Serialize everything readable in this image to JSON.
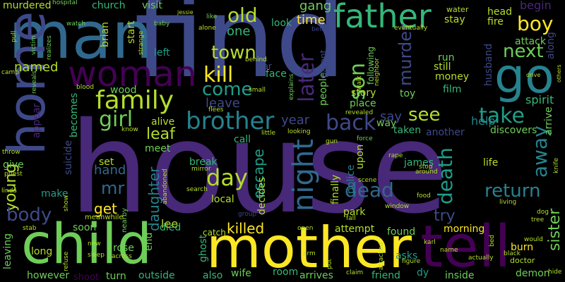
{
  "colors": {
    "background": "#000000",
    "palette": [
      "#482878",
      "#3e4989",
      "#31688e",
      "#26828e",
      "#1f9e89",
      "#35b779",
      "#6ece58",
      "#b5de2b",
      "#fde725",
      "#440154"
    ]
  },
  "words": {
    "house": "house",
    "find": "find",
    "man": "man",
    "mother": "mother",
    "child": "child",
    "tell": "tell",
    "home": "home",
    "woman": "woman",
    "go": "go",
    "father": "father",
    "family": "family",
    "brother": "brother",
    "kill": "kill",
    "old": "old",
    "boy": "boy",
    "town": "town",
    "next": "next",
    "girl": "girl",
    "come": "come",
    "take": "take",
    "see": "see",
    "night": "night",
    "back": "back",
    "later": "later",
    "son": "son",
    "death": "death",
    "day": "day",
    "dead": "dead",
    "return": "return",
    "away": "away",
    "young": "young",
    "body": "body",
    "daughter": "daughter",
    "escape": "escape",
    "killed": "killed",
    "get": "get",
    "mr": "mr",
    "leaf": "leaf",
    "hand": "hand",
    "leave": "leave",
    "one": "one",
    "time": "time",
    "gang": "gang",
    "murder": "murder",
    "named": "named",
    "begin": "begin",
    "attack": "attack",
    "help": "help",
    "try": "try",
    "sister": "sister",
    "spirit": "spirit",
    "year": "year",
    "lee": "lee",
    "rose": "rose",
    "attempt": "attempt",
    "morning": "morning",
    "found": "found",
    "burn": "burn",
    "wife": "wife",
    "room": "room",
    "inside": "inside",
    "outside": "outside",
    "however": "however",
    "also": "also",
    "arrives": "arrives",
    "friend": "friend",
    "asks": "asks",
    "end": "end",
    "died": "died",
    "soon": "soon",
    "long": "long",
    "make": "make",
    "give": "give",
    "set": "set",
    "local": "local",
    "break": "break",
    "park": "park",
    "life": "life",
    "look": "look",
    "face": "face",
    "church": "church",
    "visit": "visit",
    "murdered": "murdered",
    "hospital": "hospital",
    "still": "still",
    "money": "money",
    "film": "film",
    "run": "run",
    "toy": "toy",
    "place": "place",
    "story": "story",
    "people": "people",
    "wood": "wood",
    "alive": "alive",
    "meet": "meet",
    "call": "call",
    "say": "say",
    "way": "way",
    "taken": "taken",
    "another": "another",
    "discovers": "discovers",
    "arrive": "arrive",
    "stay": "stay",
    "fire": "fire",
    "head": "head",
    "husband": "husband",
    "water": "water",
    "along": "along",
    "following": "following",
    "suicide": "suicide",
    "becomes": "becomes",
    "appear": "appear",
    "decides": "decides",
    "upon": "upon",
    "finally": "finally",
    "police": "police",
    "james": "james",
    "ghost": "ghost",
    "catch": "catch",
    "nearby": "nearby",
    "meanwhile": "meanwhile",
    "turn": "turn",
    "shoot": "shoot",
    "small": "small",
    "car": "car",
    "behind": "behind",
    "like": "like",
    "alone": "alone",
    "belief": "belief",
    "parent": "parent",
    "eventually": "eventually",
    "explains": "explains",
    "walk": "walk",
    "neighbor": "neighbor",
    "left": "left",
    "start": "start",
    "brian": "brian",
    "watch": "watch",
    "baby": "baby",
    "jessie": "jessie",
    "strange": "strange",
    "victim": "victim",
    "pull": "pull",
    "camp": "camp",
    "realizes": "realizes",
    "reveals": "reveals",
    "blood": "blood",
    "know": "know",
    "flees": "flees",
    "little": "little",
    "looking": "looking",
    "revealed": "revealed",
    "gun": "gun",
    "force": "force",
    "rape": "rape",
    "stop": "stop",
    "around": "around",
    "scene": "scene",
    "food": "food",
    "window": "window",
    "group": "group",
    "mirror": "mirror",
    "search": "search",
    "abandoned": "abandoned",
    "open": "open",
    "arm": "arm",
    "karl": "karl",
    "name": "name",
    "figure": "figure",
    "claim": "claim",
    "attacked": "attacked",
    "put": "put",
    "dy": "dy",
    "actually": "actually",
    "black": "black",
    "doctor": "doctor",
    "demon": "demon",
    "would": "would",
    "bed": "bed",
    "hide": "hide",
    "knife": "knife",
    "dog": "dog",
    "tree": "tree",
    "living": "living",
    "throw": "throw",
    "priest": "priest",
    "linda": "linda",
    "stab": "stab",
    "leaving": "leaving",
    "refuse": "refuse",
    "across": "across",
    "sleep": "sleep",
    "new": "new",
    "show": "show",
    "others": "others",
    "drive": "drive",
    "fall": "fall"
  }
}
